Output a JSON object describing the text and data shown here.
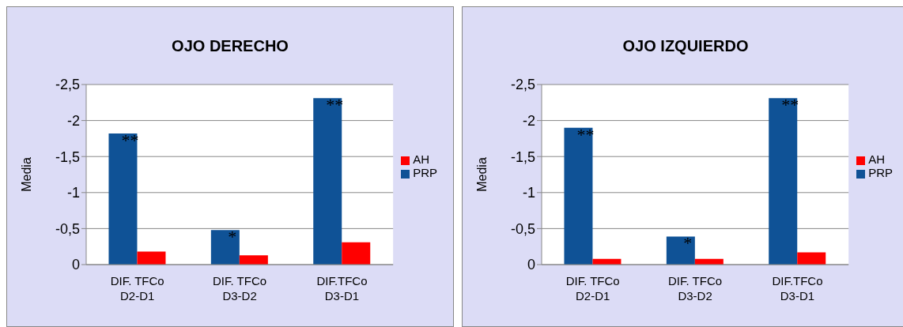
{
  "chart_data": [
    {
      "type": "bar",
      "title": "OJO DERECHO",
      "ylabel": "Media",
      "categories": [
        "DIF. TFCo\nD2-D1",
        "DIF. TFCo\nD3-D2",
        "DIF.TFCo\nD3-D1"
      ],
      "series": [
        {
          "name": "PRP",
          "color": "#0f5296",
          "values": [
            -1.82,
            -0.48,
            -2.31
          ]
        },
        {
          "name": "AH",
          "color": "#ff0000",
          "values": [
            -0.18,
            -0.13,
            -0.31
          ]
        }
      ],
      "ylim": [
        0,
        -2.5
      ],
      "yticks": [
        {
          "value": 0,
          "label": "0"
        },
        {
          "value": -0.5,
          "label": "-0,5"
        },
        {
          "value": -1,
          "label": "-1"
        },
        {
          "value": -1.5,
          "label": "-1,5"
        },
        {
          "value": -2,
          "label": "-2"
        },
        {
          "value": -2.5,
          "label": "-2,5"
        }
      ],
      "grid": "y",
      "legend": "right",
      "annotations": [
        {
          "text": "**",
          "x": "DIF. TFCo\nD2-D1",
          "y": -1.82
        },
        {
          "text": "*",
          "x": "DIF. TFCo\nD3-D2",
          "y": -0.48
        },
        {
          "text": "**",
          "x": "DIF.TFCo\nD3-D1",
          "y": -2.31
        }
      ]
    },
    {
      "type": "bar",
      "title": "OJO IZQUIERDO",
      "ylabel": "Media",
      "categories": [
        "DIF. TFCo\nD2-D1",
        "DIF. TFCo\nD3-D2",
        "DIF.TFCo\nD3-D1"
      ],
      "series": [
        {
          "name": "PRP",
          "color": "#0f5296",
          "values": [
            -1.9,
            -0.39,
            -2.31
          ]
        },
        {
          "name": "AH",
          "color": "#ff0000",
          "values": [
            -0.08,
            -0.08,
            -0.17
          ]
        }
      ],
      "ylim": [
        0,
        -2.5
      ],
      "yticks": [
        {
          "value": 0,
          "label": "0"
        },
        {
          "value": -0.5,
          "label": "-0,5"
        },
        {
          "value": -1,
          "label": "-1"
        },
        {
          "value": -1.5,
          "label": "-1,5"
        },
        {
          "value": -2,
          "label": "-2"
        },
        {
          "value": -2.5,
          "label": "-2,5"
        }
      ],
      "grid": "y",
      "legend": "right",
      "annotations": [
        {
          "text": "**",
          "x": "DIF. TFCo\nD2-D1",
          "y": -1.9
        },
        {
          "text": "*",
          "x": "DIF. TFCo\nD3-D2",
          "y": -0.39
        },
        {
          "text": "**",
          "x": "DIF.TFCo\nD3-D1",
          "y": -2.31
        }
      ]
    }
  ]
}
